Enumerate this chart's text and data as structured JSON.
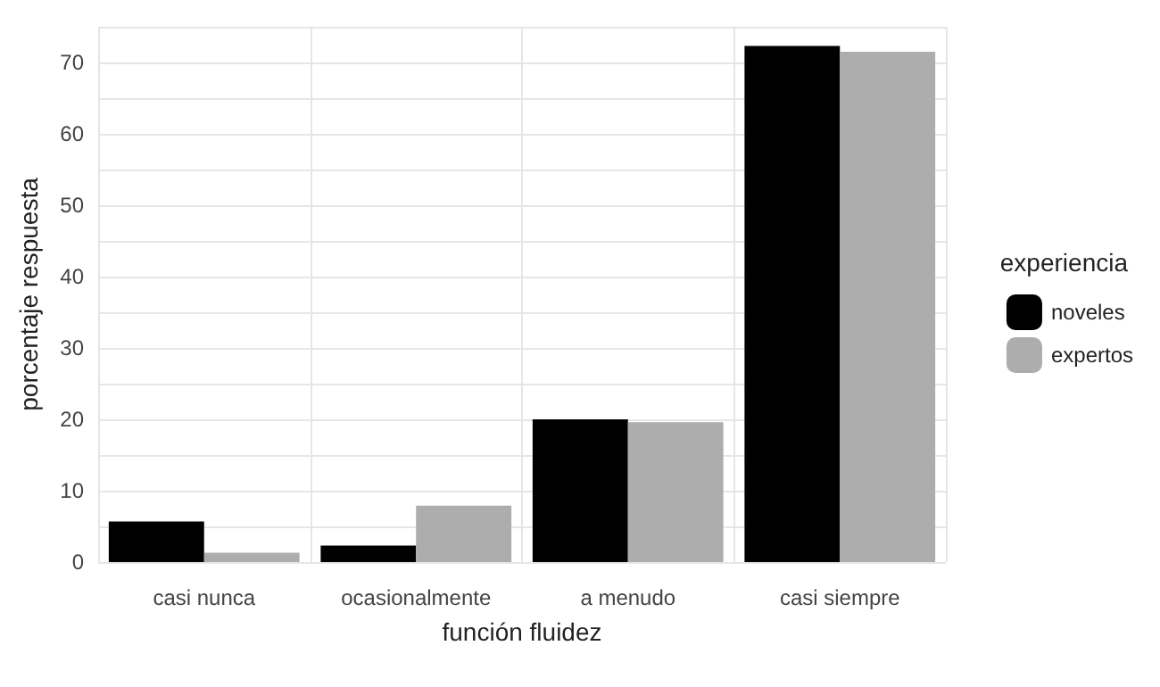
{
  "chart_data": {
    "type": "bar",
    "xlabel": "función fluidez",
    "ylabel": "porcentaje respuesta",
    "legend_title": "experiencia",
    "categories": [
      "casi nunca",
      "ocasionalmente",
      "a menudo",
      "casi siempre"
    ],
    "series": [
      {
        "name": "noveles",
        "color": "#000000",
        "values": [
          5.7,
          2.3,
          20.0,
          72.3
        ]
      },
      {
        "name": "expertos",
        "color": "#adadad",
        "values": [
          1.3,
          7.9,
          19.6,
          71.5
        ]
      }
    ],
    "ylim": [
      0,
      75
    ],
    "yticks": [
      0,
      10,
      20,
      30,
      40,
      50,
      60,
      70
    ],
    "grid": true,
    "legend": "right"
  }
}
